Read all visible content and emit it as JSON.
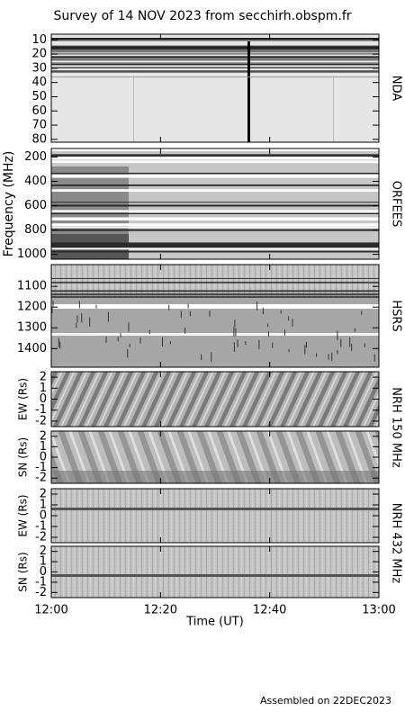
{
  "title": "Survey of 14 NOV 2023 from secchirh.obspm.fr",
  "xlabel": "Time (UT)",
  "xlim": [
    720,
    780
  ],
  "xticks": [
    {
      "value": 720,
      "label": "12:00"
    },
    {
      "value": 740,
      "label": "12:20"
    },
    {
      "value": 760,
      "label": "12:40"
    },
    {
      "value": 780,
      "label": "13:00"
    }
  ],
  "footer": "Assembled on 22DEC2023",
  "chart_data": [
    {
      "type": "spectrogram",
      "instrument": "NDA",
      "ylim": [
        6,
        82
      ],
      "y_inverted": true,
      "yticks": [
        10,
        20,
        30,
        40,
        50,
        60,
        70,
        80
      ]
    },
    {
      "type": "spectrogram",
      "instrument": "ORFEES",
      "ylabel": "Frequency (MHz)",
      "ylim": [
        130,
        1040
      ],
      "y_inverted": true,
      "yticks": [
        200,
        400,
        600,
        800,
        1000
      ]
    },
    {
      "type": "spectrogram",
      "instrument": "HSRS",
      "ylim": [
        995,
        1490
      ],
      "y_inverted": true,
      "yticks": [
        1100,
        1200,
        1300,
        1400
      ]
    },
    {
      "type": "spectrogram",
      "instrument": "NRH 150 MHz",
      "ylabel": "EW (Rs)",
      "ylim": [
        -2.5,
        2.5
      ],
      "y_inverted": false,
      "yticks": [
        -2,
        -1,
        0,
        1,
        2
      ]
    },
    {
      "type": "spectrogram",
      "ylabel": "SN (Rs)",
      "ylim": [
        -2.5,
        2.5
      ],
      "y_inverted": false,
      "yticks": [
        -2,
        -1,
        0,
        1,
        2
      ]
    },
    {
      "type": "spectrogram",
      "instrument": "NRH 432 MHz",
      "ylabel": "EW (Rs)",
      "ylim": [
        -2.5,
        2.5
      ],
      "y_inverted": false,
      "yticks": [
        -2,
        -1,
        0,
        1,
        2
      ]
    },
    {
      "type": "spectrogram",
      "ylabel": "SN (Rs)",
      "ylim": [
        -2.5,
        2.5
      ],
      "y_inverted": false,
      "yticks": [
        -2,
        -1,
        0,
        1,
        2
      ]
    }
  ]
}
